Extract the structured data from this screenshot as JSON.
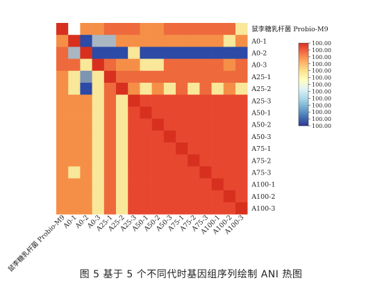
{
  "chart_data": {
    "type": "heatmap",
    "labels": [
      "鼠李糖乳杆菌 Probio-M9",
      "A0-1",
      "A0-2",
      "A0-3",
      "A25-1",
      "A25-2",
      "A25-3",
      "A50-1",
      "A50-2",
      "A50-3",
      "A75-1",
      "A75-2",
      "A75-3",
      "A100-1",
      "A100-2",
      "A100-3"
    ],
    "grid": [
      "D45566655666666S",
      "5D022555555555S5",
      "62D000S000000000",
      "66SD655SS6666656",
      "5S1SD66666666666",
      "5S0S6D5S5S6S6S5S",
      "555S6SD777777777",
      "555S6S7D77777777",
      "555S6S77D7777777",
      "555S6S777D777777",
      "555S6S7777D77777",
      "555S6S77777D7777",
      "5S5S6S777777D777",
      "555S6S7777777D77",
      "555S6S77777777D7",
      "555S6S777777777D"
    ],
    "colors": {
      "D": "#d7301f",
      "7": "#e8472f",
      "6": "#ee6a3d",
      "5": "#f58f47",
      "S": "#f9e79a",
      "2": "#a9b7c3",
      "1": "#7d95b3",
      "0": "#2c4aa6"
    },
    "colorbar": {
      "stops": [
        "#d73027",
        "#f46d43",
        "#fdae61",
        "#fee08b",
        "#ffffbf",
        "#e0f3f8",
        "#abd9e9",
        "#74add1",
        "#4575b4",
        "#313695"
      ],
      "tick_labels": [
        "100.00",
        "100.00",
        "100.00",
        "100.00",
        "100.00",
        "100.00",
        "100.00",
        "100.00",
        "100.00",
        "100.00",
        "100.00",
        "100.00",
        "100.00"
      ]
    }
  },
  "caption": "图 5   基于 5 个不同代时基因组序列绘制 ANI 热图"
}
